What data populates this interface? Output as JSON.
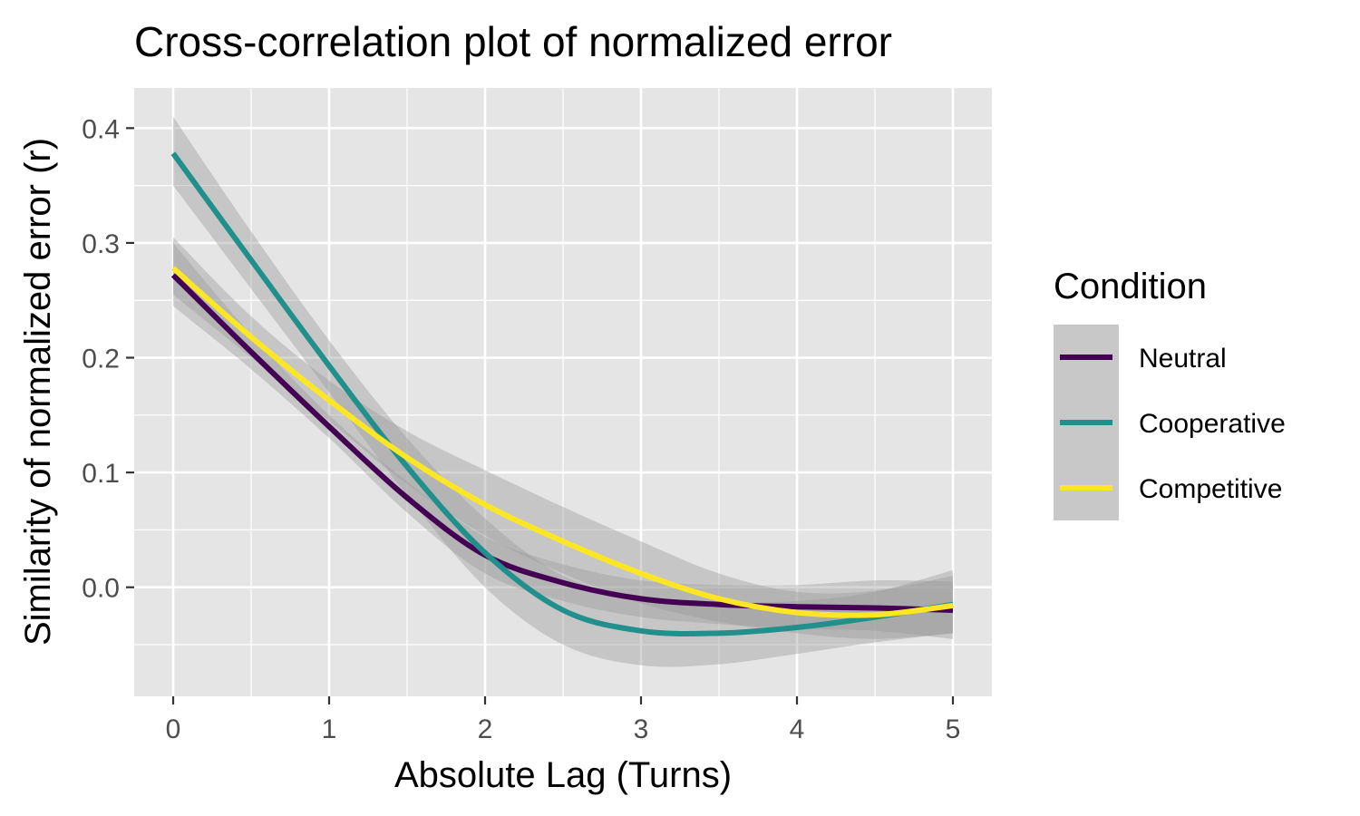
{
  "chart_data": {
    "type": "line",
    "title": "Cross-correlation plot of normalized error",
    "xlabel": "Absolute Lag (Turns)",
    "ylabel": "Similarity of normalized error (r)",
    "xlim": [
      -0.25,
      5.25
    ],
    "ylim": [
      -0.095,
      0.435
    ],
    "xticks": [
      0,
      1,
      2,
      3,
      4,
      5
    ],
    "xtick_labels": [
      "0",
      "1",
      "2",
      "3",
      "4",
      "5"
    ],
    "yticks": [
      0.0,
      0.1,
      0.2,
      0.3,
      0.4
    ],
    "ytick_labels": [
      "0.0",
      "0.1",
      "0.2",
      "0.3",
      "0.4"
    ],
    "grid": true,
    "legend_position": "right",
    "legend_title": "Condition",
    "x": [
      0,
      0.5,
      1,
      1.5,
      2,
      2.5,
      3,
      3.5,
      4,
      4.5,
      5
    ],
    "series": [
      {
        "name": "Neutral",
        "color": "#440154",
        "values": [
          0.272,
          0.205,
          0.14,
          0.078,
          0.028,
          0.004,
          -0.01,
          -0.015,
          -0.017,
          -0.018,
          -0.02
        ],
        "ci_lower": [
          0.245,
          0.19,
          0.13,
          0.065,
          0.012,
          -0.012,
          -0.026,
          -0.032,
          -0.036,
          -0.038,
          -0.045
        ],
        "ci_upper": [
          0.3,
          0.22,
          0.15,
          0.092,
          0.044,
          0.02,
          0.006,
          0.002,
          0.002,
          0.006,
          0.005
        ]
      },
      {
        "name": "Cooperative",
        "color": "#21908C",
        "values": [
          0.378,
          0.285,
          0.193,
          0.105,
          0.03,
          -0.02,
          -0.038,
          -0.04,
          -0.035,
          -0.026,
          -0.015
        ],
        "ci_lower": [
          0.35,
          0.26,
          0.17,
          0.08,
          0.0,
          -0.05,
          -0.068,
          -0.067,
          -0.058,
          -0.048,
          -0.04
        ],
        "ci_upper": [
          0.41,
          0.31,
          0.215,
          0.13,
          0.06,
          0.01,
          -0.008,
          -0.013,
          -0.012,
          -0.004,
          0.015
        ]
      },
      {
        "name": "Competitive",
        "color": "#FDE725",
        "values": [
          0.278,
          0.218,
          0.163,
          0.113,
          0.072,
          0.04,
          0.012,
          -0.01,
          -0.022,
          -0.024,
          -0.016
        ],
        "ci_lower": [
          0.255,
          0.2,
          0.145,
          0.09,
          0.045,
          0.012,
          -0.014,
          -0.03,
          -0.04,
          -0.045,
          -0.04
        ],
        "ci_upper": [
          0.305,
          0.236,
          0.18,
          0.136,
          0.102,
          0.07,
          0.04,
          0.012,
          -0.004,
          -0.003,
          0.01
        ]
      }
    ]
  },
  "colors": {
    "panel_background": "#E5E5E5",
    "grid": "#FFFFFF",
    "ribbon": "#999999",
    "tick_text": "#4D4D4D",
    "legend_key_background": "#C8C8C8"
  }
}
